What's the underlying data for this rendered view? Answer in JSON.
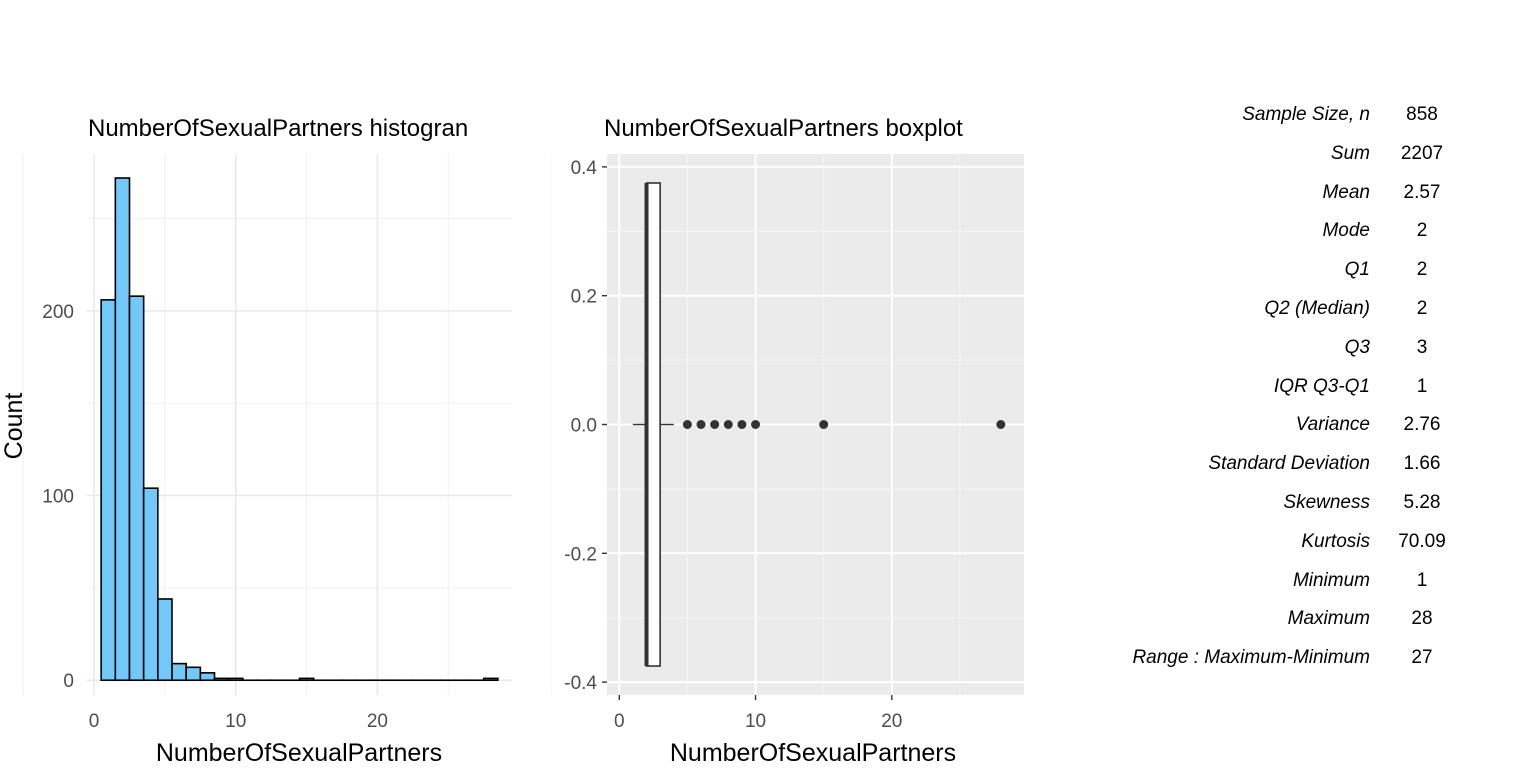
{
  "chart_data": [
    {
      "type": "bar",
      "title": "NumberOfSexualPartners histogran",
      "xlabel": "NumberOfSexualPartners",
      "ylabel": "Count",
      "bin_width": 1,
      "bins": [
        {
          "x0": 0.5,
          "x1": 1.5,
          "count": 206
        },
        {
          "x0": 1.5,
          "x1": 2.5,
          "count": 272
        },
        {
          "x0": 2.5,
          "x1": 3.5,
          "count": 208
        },
        {
          "x0": 3.5,
          "x1": 4.5,
          "count": 104
        },
        {
          "x0": 4.5,
          "x1": 5.5,
          "count": 44
        },
        {
          "x0": 5.5,
          "x1": 6.5,
          "count": 9
        },
        {
          "x0": 6.5,
          "x1": 7.5,
          "count": 7
        },
        {
          "x0": 7.5,
          "x1": 8.5,
          "count": 4
        },
        {
          "x0": 8.5,
          "x1": 9.5,
          "count": 1
        },
        {
          "x0": 9.5,
          "x1": 10.5,
          "count": 1
        },
        {
          "x0": 10.5,
          "x1": 11.5,
          "count": 0
        },
        {
          "x0": 11.5,
          "x1": 12.5,
          "count": 0
        },
        {
          "x0": 12.5,
          "x1": 13.5,
          "count": 0
        },
        {
          "x0": 13.5,
          "x1": 14.5,
          "count": 0
        },
        {
          "x0": 14.5,
          "x1": 15.5,
          "count": 1
        },
        {
          "x0": 15.5,
          "x1": 16.5,
          "count": 0
        },
        {
          "x0": 16.5,
          "x1": 17.5,
          "count": 0
        },
        {
          "x0": 17.5,
          "x1": 18.5,
          "count": 0
        },
        {
          "x0": 18.5,
          "x1": 19.5,
          "count": 0
        },
        {
          "x0": 19.5,
          "x1": 20.5,
          "count": 0
        },
        {
          "x0": 20.5,
          "x1": 21.5,
          "count": 0
        },
        {
          "x0": 21.5,
          "x1": 22.5,
          "count": 0
        },
        {
          "x0": 22.5,
          "x1": 23.5,
          "count": 0
        },
        {
          "x0": 23.5,
          "x1": 24.5,
          "count": 0
        },
        {
          "x0": 24.5,
          "x1": 25.5,
          "count": 0
        },
        {
          "x0": 25.5,
          "x1": 26.5,
          "count": 0
        },
        {
          "x0": 26.5,
          "x1": 27.5,
          "count": 0
        },
        {
          "x0": 27.5,
          "x1": 28.5,
          "count": 1
        }
      ],
      "xlim": [
        -0.5,
        29.5
      ],
      "ylim": [
        -8,
        285
      ],
      "xticks": [
        0,
        10,
        20
      ],
      "yticks": [
        0,
        100,
        200
      ],
      "fill_color": "#74c8f7",
      "stroke_color": "#000000",
      "grid": true
    },
    {
      "type": "boxplot",
      "title": "NumberOfSexualPartners boxplot",
      "xlabel": "NumberOfSexualPartners",
      "ylabel": "",
      "xlim": [
        -0.9,
        29.7
      ],
      "ylim": [
        -0.42,
        0.42
      ],
      "xticks": [
        0,
        10,
        20
      ],
      "yticks": [
        -0.4,
        -0.2,
        0.0,
        0.2,
        0.4
      ],
      "box": {
        "q1": 2,
        "median": 2,
        "q3": 3,
        "whisker_low": 1,
        "whisker_high": 4,
        "y_half_height": 0.375
      },
      "outliers": [
        5,
        6,
        7,
        8,
        9,
        10,
        15,
        28
      ],
      "panel_background": "#ebebeb",
      "grid": true
    }
  ],
  "yticks_labels": {
    "hist": [
      "0",
      "100",
      "200"
    ],
    "box": [
      "-0.4",
      "-0.2",
      "0.0",
      "0.2",
      "0.4"
    ]
  },
  "xticks_labels": [
    "0",
    "10",
    "20"
  ],
  "stats": [
    {
      "label": "Sample Size, n",
      "value": "858"
    },
    {
      "label": "Sum",
      "value": "2207"
    },
    {
      "label": "Mean",
      "value": "2.57"
    },
    {
      "label": "Mode",
      "value": "2"
    },
    {
      "label": "Q1",
      "value": "2"
    },
    {
      "label": "Q2 (Median)",
      "value": "2"
    },
    {
      "label": "Q3",
      "value": "3"
    },
    {
      "label": "IQR Q3-Q1",
      "value": "1"
    },
    {
      "label": "Variance",
      "value": "2.76"
    },
    {
      "label": "Standard Deviation",
      "value": "1.66"
    },
    {
      "label": "Skewness",
      "value": "5.28"
    },
    {
      "label": "Kurtosis",
      "value": "70.09"
    },
    {
      "label": "Minimum",
      "value": "1"
    },
    {
      "label": "Maximum",
      "value": "28"
    },
    {
      "label": "Range : Maximum-Minimum",
      "value": "27"
    }
  ]
}
